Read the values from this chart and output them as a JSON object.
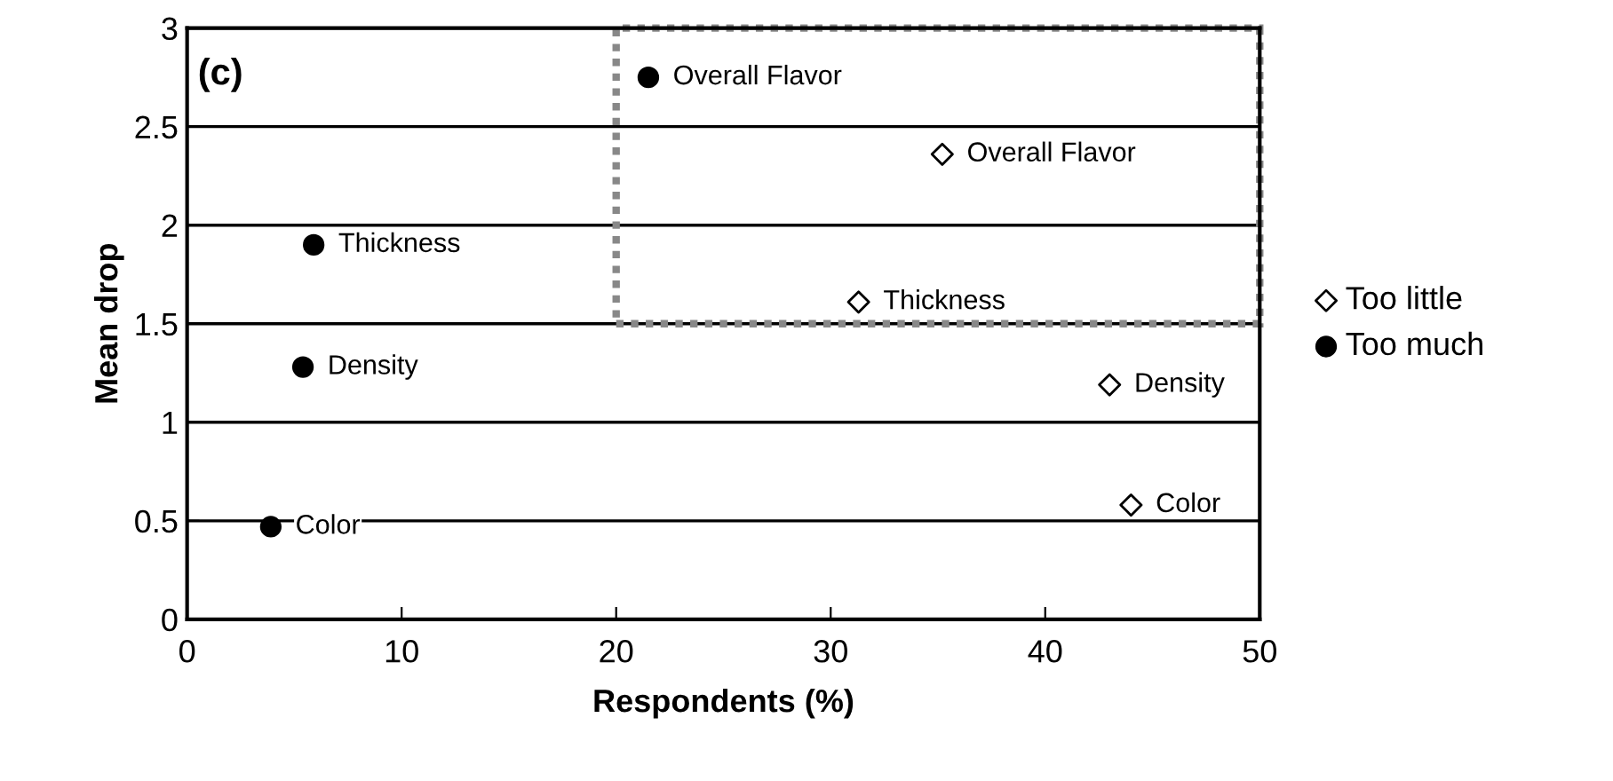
{
  "chart_data": {
    "type": "scatter",
    "xlabel": "Respondents (%)",
    "ylabel": "Mean drop",
    "xlim": [
      0,
      50
    ],
    "ylim": [
      0,
      3
    ],
    "xticks": [
      0,
      10,
      20,
      30,
      40,
      50
    ],
    "yticks": [
      0,
      0.5,
      1,
      1.5,
      2,
      2.5,
      3
    ],
    "grid": "y",
    "legend": "right",
    "series": [
      {
        "name": "Too little",
        "color": "#000000",
        "marker": "diamond",
        "x": [
          35.2,
          31.3,
          43.0,
          44.0
        ],
        "values": [
          2.36,
          1.61,
          1.19,
          0.58
        ]
      },
      {
        "name": "Too much",
        "color": "#000000",
        "marker": "circle",
        "x": [
          21.5,
          5.9,
          5.4,
          3.9
        ],
        "values": [
          2.75,
          1.9,
          1.28,
          0.47
        ]
      }
    ],
    "annotations": [
      "(c)",
      {
        "text": "Overall Flavor",
        "x": 35.2,
        "y": 2.36
      },
      {
        "text": "Thickness",
        "x": 31.3,
        "y": 1.61
      },
      {
        "text": "Density",
        "x": 43.0,
        "y": 1.19
      },
      {
        "text": "Color",
        "x": 44.0,
        "y": 0.58
      },
      {
        "text": "Overall Flavor",
        "x": 21.5,
        "y": 2.75
      },
      {
        "text": "Thickness",
        "x": 5.9,
        "y": 1.9
      },
      {
        "text": "Density",
        "x": 5.4,
        "y": 1.28
      },
      {
        "text": "Color",
        "x": 3.9,
        "y": 0.47
      }
    ]
  }
}
